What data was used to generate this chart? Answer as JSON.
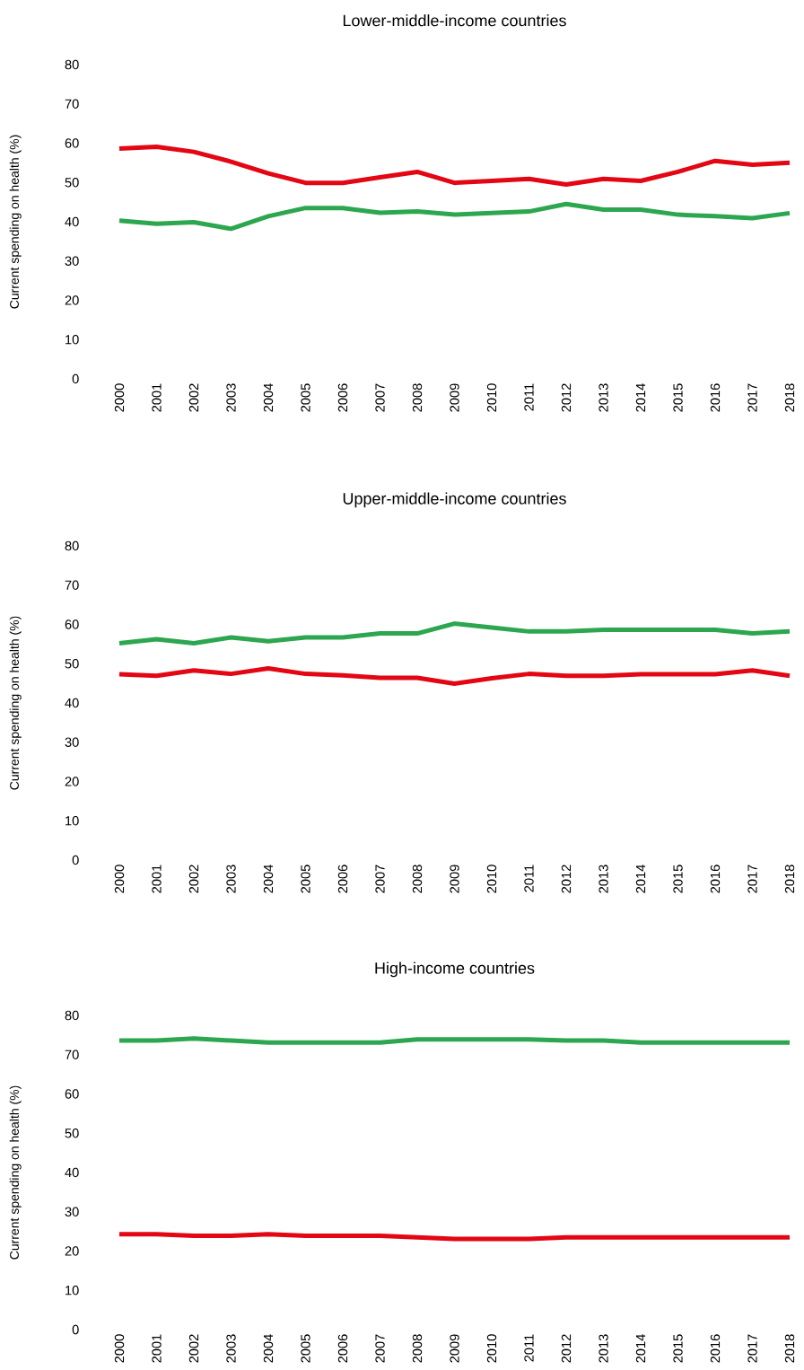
{
  "chart_data": [
    {
      "type": "line",
      "title": "Lower-middle-income countries",
      "ylabel": "Current spending on health (%)",
      "categories": [
        "2000",
        "2001",
        "2002",
        "2003",
        "2004",
        "2005",
        "2006",
        "2007",
        "2008",
        "2009",
        "2010",
        "2011",
        "2012",
        "2013",
        "2014",
        "2015",
        "2016",
        "2017",
        "2018"
      ],
      "ylim": [
        0,
        80
      ],
      "yticks": [
        0,
        10,
        20,
        30,
        40,
        50,
        60,
        70,
        80
      ],
      "series": [
        {
          "color": "#e30613",
          "values": [
            58.6,
            59.1,
            57.8,
            55.3,
            52.3,
            49.9,
            49.9,
            51.3,
            52.7,
            49.9,
            50.4,
            50.9,
            49.5,
            50.9,
            50.4,
            52.7,
            55.5,
            54.5,
            55.0
          ]
        },
        {
          "color": "#2ca64f",
          "values": [
            40.3,
            39.5,
            39.9,
            38.2,
            41.4,
            43.5,
            43.5,
            42.3,
            42.6,
            41.8,
            42.2,
            42.6,
            44.5,
            43.1,
            43.1,
            41.8,
            41.4,
            40.9,
            42.2
          ]
        }
      ]
    },
    {
      "type": "line",
      "title": "Upper-middle-income countries",
      "ylabel": "Current spending on health (%)",
      "categories": [
        "2000",
        "2001",
        "2002",
        "2003",
        "2004",
        "2005",
        "2006",
        "2007",
        "2008",
        "2009",
        "2010",
        "2011",
        "2012",
        "2013",
        "2014",
        "2015",
        "2016",
        "2017",
        "2018"
      ],
      "ylim": [
        0,
        80
      ],
      "yticks": [
        0,
        10,
        20,
        30,
        40,
        50,
        60,
        70,
        80
      ],
      "series": [
        {
          "color": "#2ca64f",
          "values": [
            55.2,
            56.2,
            55.2,
            56.7,
            55.7,
            56.7,
            56.7,
            57.7,
            57.7,
            60.2,
            59.2,
            58.2,
            58.2,
            58.6,
            58.6,
            58.6,
            58.6,
            57.7,
            58.2
          ]
        },
        {
          "color": "#e30613",
          "values": [
            47.3,
            46.9,
            48.3,
            47.4,
            48.8,
            47.4,
            47.0,
            46.4,
            46.4,
            44.9,
            46.3,
            47.4,
            46.9,
            46.9,
            47.3,
            47.3,
            47.3,
            48.3,
            46.9
          ]
        }
      ]
    },
    {
      "type": "line",
      "title": "High-income countries",
      "ylabel": "Current spending on health (%)",
      "categories": [
        "2000",
        "2001",
        "2002",
        "2003",
        "2004",
        "2005",
        "2006",
        "2007",
        "2008",
        "2009",
        "2010",
        "2011",
        "2012",
        "2013",
        "2014",
        "2015",
        "2016",
        "2017",
        "2018"
      ],
      "ylim": [
        0,
        80
      ],
      "yticks": [
        0,
        10,
        20,
        30,
        40,
        50,
        60,
        70,
        80
      ],
      "series": [
        {
          "color": "#2ca64f",
          "values": [
            73.6,
            73.6,
            74.1,
            73.6,
            73.1,
            73.1,
            73.1,
            73.1,
            73.9,
            73.9,
            73.9,
            73.9,
            73.6,
            73.6,
            73.1,
            73.1,
            73.1,
            73.1,
            73.1
          ]
        },
        {
          "color": "#e30613",
          "values": [
            24.3,
            24.3,
            23.9,
            23.9,
            24.3,
            23.9,
            23.9,
            23.9,
            23.5,
            23.1,
            23.1,
            23.1,
            23.5,
            23.5,
            23.5,
            23.5,
            23.5,
            23.5,
            23.5
          ]
        }
      ]
    }
  ]
}
